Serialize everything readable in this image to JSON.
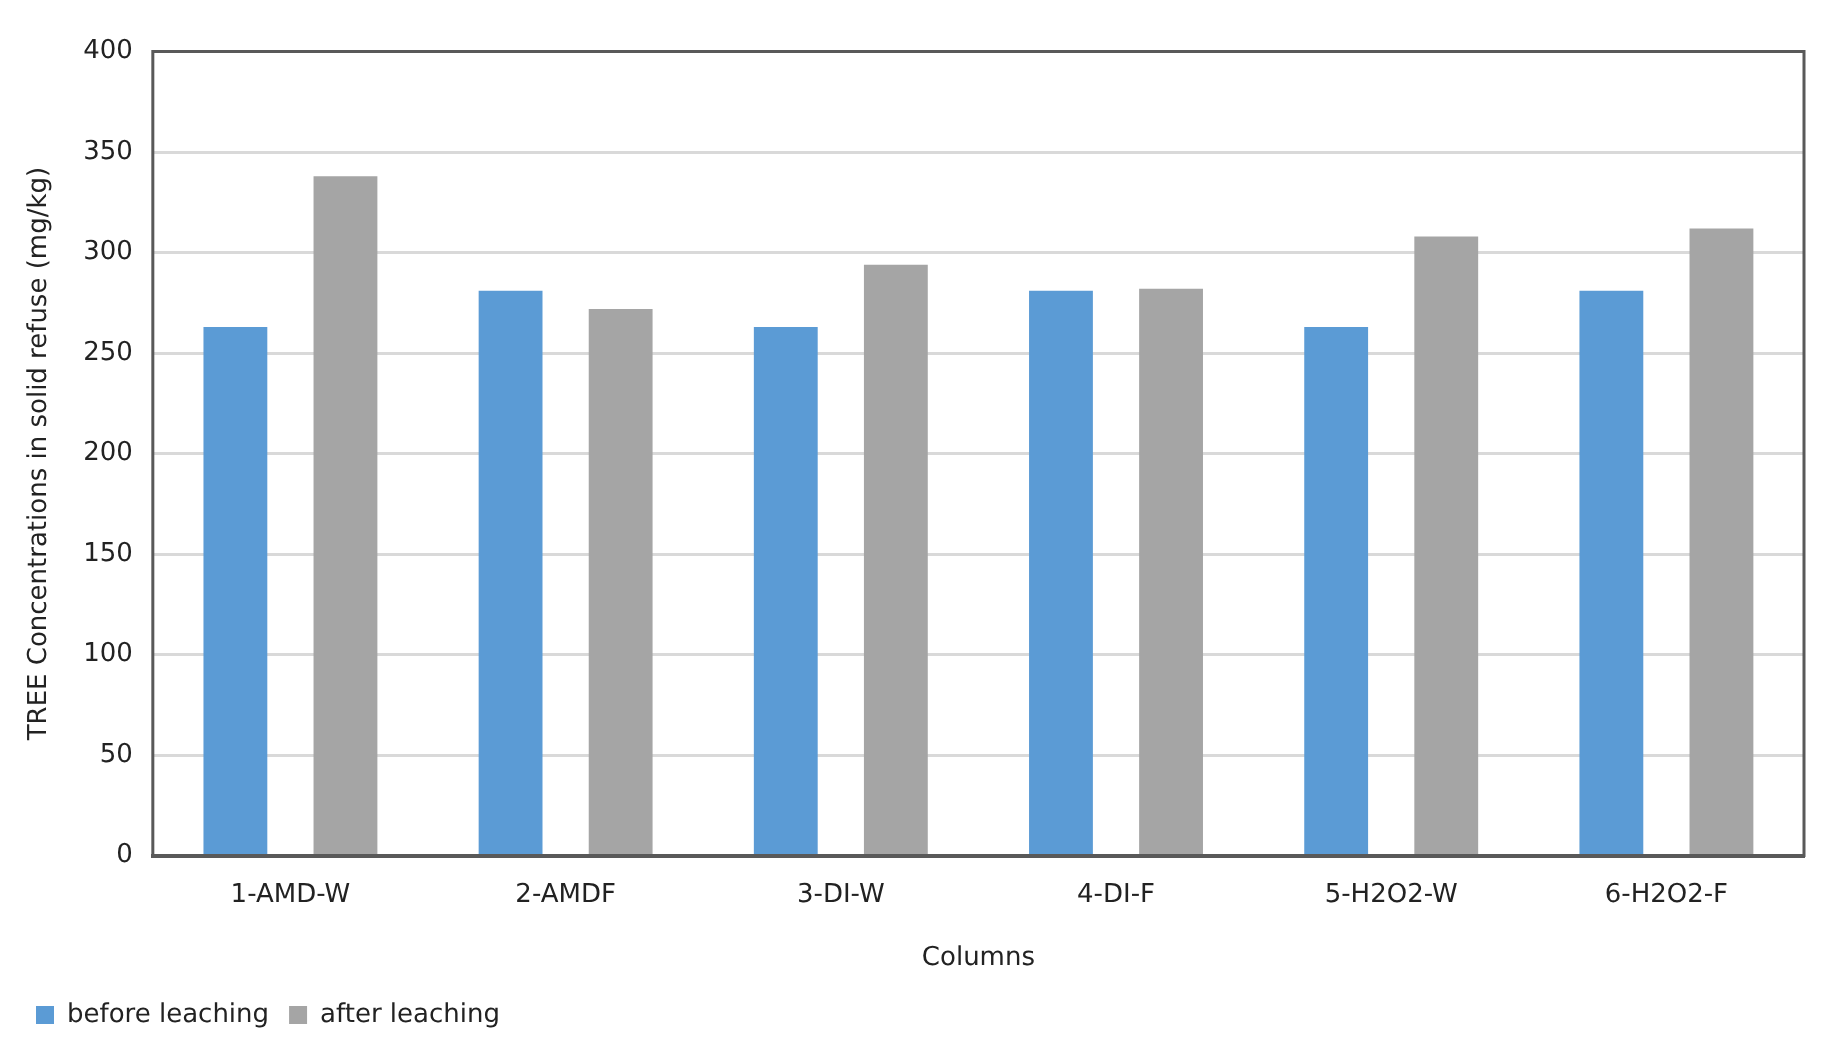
{
  "chart_data": {
    "type": "bar",
    "xlabel": "Columns",
    "ylabel": "TREE Concentrations in solid refuse (mg/kg)",
    "categories": [
      "1-AMD-W",
      "2-AMDF",
      "3-DI-W",
      "4-DI-F",
      "5-H2O2-W",
      "6-H2O2-F"
    ],
    "series": [
      {
        "name": "before leaching",
        "color": "#5b9bd5",
        "values": [
          263,
          281,
          263,
          281,
          263,
          281
        ]
      },
      {
        "name": "after leaching",
        "color": "#a5a5a5",
        "values": [
          338,
          272,
          294,
          282,
          308,
          312
        ]
      }
    ],
    "ylim": [
      0,
      400
    ],
    "yticks": [
      0,
      50,
      100,
      150,
      200,
      250,
      300,
      350,
      400
    ],
    "grid": "y",
    "legend": "bottom left"
  }
}
